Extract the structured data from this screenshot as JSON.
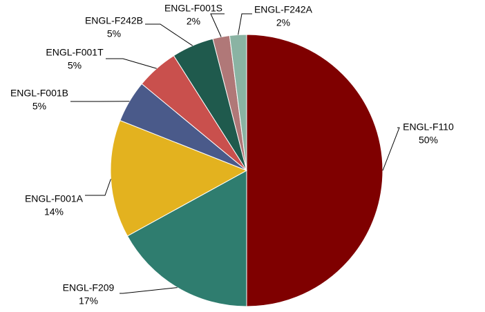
{
  "chart_data": {
    "type": "pie",
    "categories": [
      "ENGL-F110",
      "ENGL-F209",
      "ENGL-F001A",
      "ENGL-F001B",
      "ENGL-F001T",
      "ENGL-F242B",
      "ENGL-F001S",
      "ENGL-F242A"
    ],
    "values": [
      50,
      17,
      14,
      5,
      5,
      5,
      2,
      2
    ],
    "value_labels": [
      "50%",
      "17%",
      "14%",
      "5%",
      "5%",
      "5%",
      "2%",
      "2%"
    ],
    "colors": [
      "#7f0000",
      "#2f7d6f",
      "#e3b21f",
      "#4a5a8a",
      "#c9504d",
      "#1f5a4d",
      "#b07878",
      "#8ab3a3"
    ]
  }
}
